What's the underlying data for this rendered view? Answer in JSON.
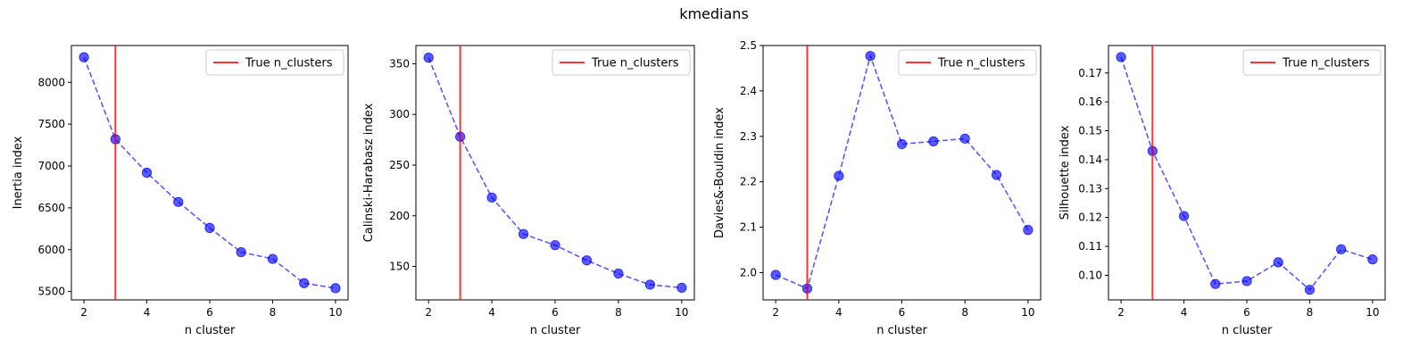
{
  "figure": {
    "title": "kmedians"
  },
  "colors": {
    "series": "#0000ff",
    "reference": "#ff0000"
  },
  "chart_data": [
    {
      "type": "line",
      "xlabel": "n cluster",
      "ylabel": "Inertia index",
      "x": [
        2,
        3,
        4,
        5,
        6,
        7,
        8,
        9,
        10
      ],
      "series": [
        {
          "values": [
            8300,
            7320,
            6920,
            6570,
            6260,
            5970,
            5890,
            5600,
            5540
          ]
        }
      ],
      "reference_line": {
        "x": 3,
        "label": "True n_clusters"
      },
      "legend": "top-right",
      "xlim": [
        1.6,
        10.4
      ],
      "ylim": [
        5400,
        8440
      ],
      "xticks": [
        2,
        4,
        6,
        8,
        10
      ],
      "yticks": [
        5500,
        6000,
        6500,
        7000,
        7500,
        8000
      ],
      "grid": false
    },
    {
      "type": "line",
      "xlabel": "n cluster",
      "ylabel": "Calinski-Harabasz index",
      "x": [
        2,
        3,
        4,
        5,
        6,
        7,
        8,
        9,
        10
      ],
      "series": [
        {
          "values": [
            356,
            278,
            218,
            182,
            171,
            156,
            143,
            132,
            129
          ]
        }
      ],
      "reference_line": {
        "x": 3,
        "label": "True n_clusters"
      },
      "legend": "top-right",
      "xlim": [
        1.6,
        10.4
      ],
      "ylim": [
        117,
        368
      ],
      "xticks": [
        2,
        4,
        6,
        8,
        10
      ],
      "yticks": [
        150,
        200,
        250,
        300,
        350
      ],
      "grid": false
    },
    {
      "type": "line",
      "xlabel": "n cluster",
      "ylabel": "Davies&-Bouldin index",
      "x": [
        2,
        3,
        4,
        5,
        6,
        7,
        8,
        9,
        10
      ],
      "series": [
        {
          "values": [
            1.995,
            1.965,
            2.213,
            2.477,
            2.283,
            2.289,
            2.295,
            2.215,
            2.094
          ]
        }
      ],
      "reference_line": {
        "x": 3,
        "label": "True n_clusters"
      },
      "legend": "top-right",
      "xlim": [
        1.6,
        10.4
      ],
      "ylim": [
        1.94,
        2.5
      ],
      "xticks": [
        2,
        4,
        6,
        8,
        10
      ],
      "yticks": [
        2.0,
        2.1,
        2.2,
        2.3,
        2.4,
        2.5
      ],
      "grid": false
    },
    {
      "type": "line",
      "xlabel": "n cluster",
      "ylabel": "Silhouette index",
      "x": [
        2,
        3,
        4,
        5,
        6,
        7,
        8,
        9,
        10
      ],
      "series": [
        {
          "values": [
            0.1755,
            0.143,
            0.1205,
            0.097,
            0.098,
            0.1045,
            0.095,
            0.109,
            0.1055
          ]
        }
      ],
      "reference_line": {
        "x": 3,
        "label": "True n_clusters"
      },
      "legend": "top-right",
      "xlim": [
        1.6,
        10.4
      ],
      "ylim": [
        0.0915,
        0.1795
      ],
      "xticks": [
        2,
        4,
        6,
        8,
        10
      ],
      "yticks": [
        0.1,
        0.11,
        0.12,
        0.13,
        0.14,
        0.15,
        0.16,
        0.17
      ],
      "grid": false
    }
  ]
}
